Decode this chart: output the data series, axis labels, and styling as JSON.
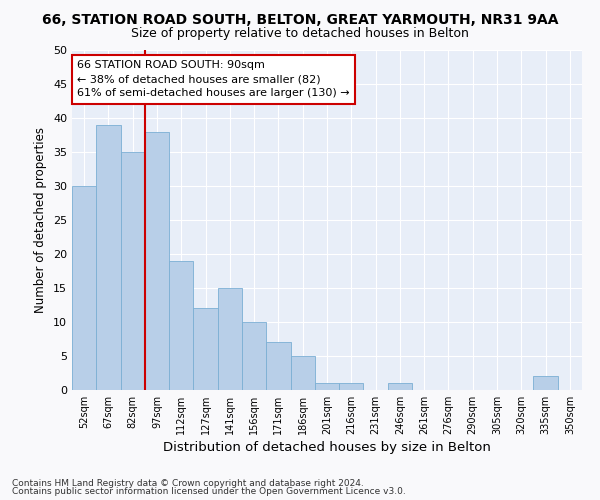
{
  "title1": "66, STATION ROAD SOUTH, BELTON, GREAT YARMOUTH, NR31 9AA",
  "title2": "Size of property relative to detached houses in Belton",
  "xlabel": "Distribution of detached houses by size in Belton",
  "ylabel": "Number of detached properties",
  "categories": [
    "52sqm",
    "67sqm",
    "82sqm",
    "97sqm",
    "112sqm",
    "127sqm",
    "141sqm",
    "156sqm",
    "171sqm",
    "186sqm",
    "201sqm",
    "216sqm",
    "231sqm",
    "246sqm",
    "261sqm",
    "276sqm",
    "290sqm",
    "305sqm",
    "320sqm",
    "335sqm",
    "350sqm"
  ],
  "values": [
    30,
    39,
    35,
    38,
    19,
    12,
    15,
    10,
    7,
    5,
    1,
    1,
    0,
    1,
    0,
    0,
    0,
    0,
    0,
    2,
    0
  ],
  "bar_color": "#b8cfe8",
  "bar_edge_color": "#7bafd4",
  "vline_x": 2.5,
  "vline_color": "#cc0000",
  "ylim": [
    0,
    50
  ],
  "yticks": [
    0,
    5,
    10,
    15,
    20,
    25,
    30,
    35,
    40,
    45,
    50
  ],
  "annotation_line1": "66 STATION ROAD SOUTH: 90sqm",
  "annotation_line2": "← 38% of detached houses are smaller (82)",
  "annotation_line3": "61% of semi-detached houses are larger (130) →",
  "annotation_box_color": "#ffffff",
  "annotation_box_edge": "#cc0000",
  "footnote1": "Contains HM Land Registry data © Crown copyright and database right 2024.",
  "footnote2": "Contains public sector information licensed under the Open Government Licence v3.0.",
  "fig_bg_color": "#f9f9fb",
  "plot_bg_color": "#e8eef8",
  "grid_color": "#ffffff",
  "title1_fontsize": 10,
  "title2_fontsize": 9
}
